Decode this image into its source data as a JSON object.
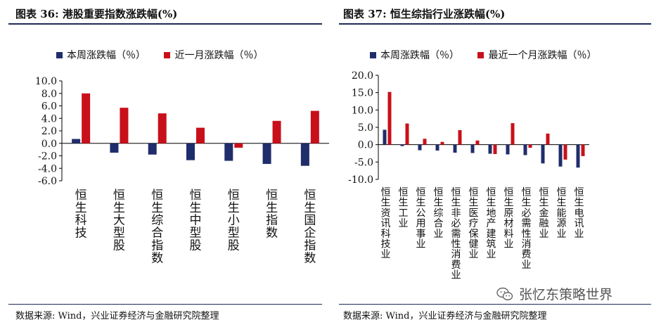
{
  "left": {
    "figure_title": "图表 36:  港股重要指数涨跌幅(%)",
    "source": "数据来源:  Wind，兴业证券经济与金融研究院整理",
    "legend": [
      {
        "label": "本周涨跌幅（％）",
        "color": "#1f2d6b"
      },
      {
        "label": "近一月涨跌幅（％）",
        "color": "#c8101a"
      }
    ]
  },
  "right": {
    "figure_title": "图表 37:  恒生综指行业涨跌幅(%)",
    "source": "数据来源:  Wind，兴业证券经济与金融研究院整理",
    "legend": [
      {
        "label": "本周涨跌幅（％）",
        "color": "#1f2d6b"
      },
      {
        "label": "最近一个月涨跌幅（％）",
        "color": "#c8101a"
      }
    ]
  },
  "watermark": "张忆东策略世界",
  "chart_data": [
    {
      "type": "bar",
      "title": "图表 36:  港股重要指数涨跌幅(%)",
      "categories": [
        "恒生科技",
        "恒生大型股",
        "恒生综合指数",
        "恒生中型股",
        "恒生小型股",
        "恒生指数",
        "恒生国企指数"
      ],
      "series": [
        {
          "name": "本周涨跌幅（％）",
          "color": "#1f2d6b",
          "values": [
            0.7,
            -1.5,
            -1.8,
            -2.7,
            -2.8,
            -3.3,
            -3.6
          ]
        },
        {
          "name": "近一月涨跌幅（％）",
          "color": "#c8101a",
          "values": [
            8.0,
            5.7,
            4.8,
            2.5,
            -0.7,
            3.6,
            5.2
          ]
        }
      ],
      "ylim": [
        -6,
        10
      ],
      "yticks": [
        -6,
        -4,
        -2,
        0,
        2,
        4,
        6,
        8,
        10
      ],
      "ytick_labels": [
        "-6.0",
        "-4.0",
        "-2.0",
        "0.0",
        "2.0",
        "4.0",
        "6.0",
        "8.0",
        "10.0"
      ],
      "xlabel": "",
      "ylabel": "",
      "grid": false,
      "legend": "top"
    },
    {
      "type": "bar",
      "title": "图表 37:  恒生综指行业涨跌幅(%)",
      "categories": [
        "恒生资讯科技业",
        "恒生工业",
        "恒生公用事业",
        "恒生综合业",
        "恒生非必需性消费业",
        "恒生医疗保健业",
        "恒生地产建筑业",
        "恒生原材料业",
        "恒生必需性消费业",
        "恒生金融业",
        "恒生能源业",
        "恒生电讯业"
      ],
      "series": [
        {
          "name": "本周涨跌幅（％）",
          "color": "#1f2d6b",
          "values": [
            4.3,
            -0.4,
            -1.6,
            -1.7,
            -2.3,
            -2.4,
            -2.6,
            -2.8,
            -3.0,
            -5.4,
            -6.3,
            -6.6
          ]
        },
        {
          "name": "最近一个月涨跌幅（％）",
          "color": "#c8101a",
          "values": [
            15.2,
            6.1,
            1.7,
            0.8,
            4.2,
            1.2,
            -2.7,
            6.2,
            -0.9,
            3.2,
            -4.3,
            -3.3
          ]
        }
      ],
      "ylim": [
        -10,
        20
      ],
      "yticks": [
        -10,
        -5,
        0,
        5,
        10,
        15,
        20
      ],
      "ytick_labels": [
        "-10.0",
        "-5.0",
        "0.0",
        "5.0",
        "10.0",
        "15.0",
        "20.0"
      ],
      "xlabel": "",
      "ylabel": "",
      "grid": false,
      "legend": "top"
    }
  ]
}
